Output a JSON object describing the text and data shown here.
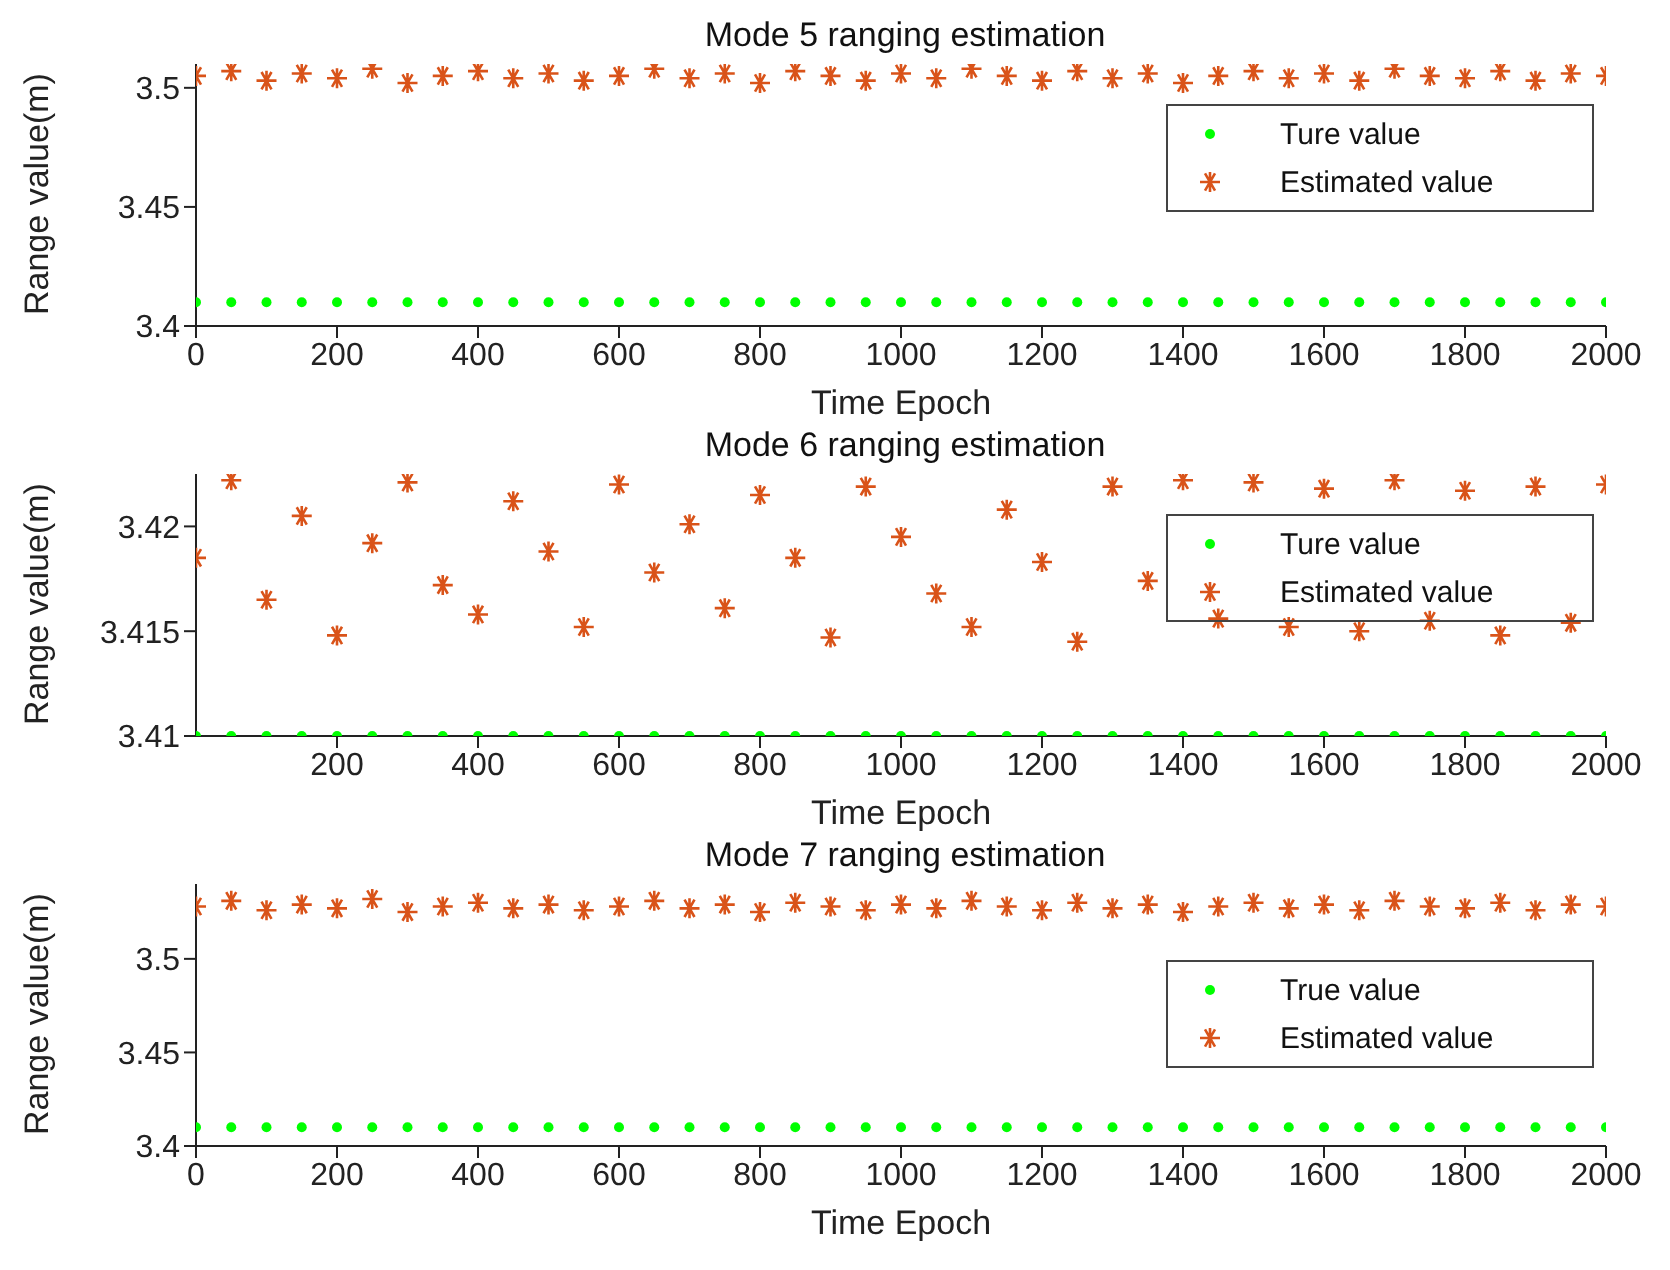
{
  "chart_data": [
    {
      "type": "scatter",
      "title": "Mode 5 ranging estimation",
      "xlabel": "Time Epoch",
      "ylabel": "Range value(m)",
      "legend": "top right",
      "grid": false,
      "x": [
        0,
        50,
        100,
        150,
        200,
        250,
        300,
        350,
        400,
        450,
        500,
        550,
        600,
        650,
        700,
        750,
        800,
        850,
        900,
        950,
        1000,
        1050,
        1100,
        1150,
        1200,
        1250,
        1300,
        1350,
        1400,
        1450,
        1500,
        1550,
        1600,
        1650,
        1700,
        1750,
        1800,
        1850,
        1900,
        1950,
        2000
      ],
      "xlim": [
        0,
        2000
      ],
      "xticks": [
        0,
        200,
        400,
        600,
        800,
        1000,
        1200,
        1400,
        1600,
        1800,
        2000
      ],
      "ylim": [
        3.4,
        3.51
      ],
      "yticks": [
        3.4,
        3.45,
        3.5
      ],
      "series": [
        {
          "name": "Ture value",
          "color": "#00ff00",
          "marker": "circle",
          "values": [
            3.41,
            3.41,
            3.41,
            3.41,
            3.41,
            3.41,
            3.41,
            3.41,
            3.41,
            3.41,
            3.41,
            3.41,
            3.41,
            3.41,
            3.41,
            3.41,
            3.41,
            3.41,
            3.41,
            3.41,
            3.41,
            3.41,
            3.41,
            3.41,
            3.41,
            3.41,
            3.41,
            3.41,
            3.41,
            3.41,
            3.41,
            3.41,
            3.41,
            3.41,
            3.41,
            3.41,
            3.41,
            3.41,
            3.41,
            3.41,
            3.41
          ]
        },
        {
          "name": "Estimated value",
          "color": "#d95319",
          "marker": "cross",
          "values": [
            3.505,
            3.507,
            3.503,
            3.506,
            3.504,
            3.508,
            3.502,
            3.505,
            3.507,
            3.504,
            3.506,
            3.503,
            3.505,
            3.508,
            3.504,
            3.506,
            3.502,
            3.507,
            3.505,
            3.503,
            3.506,
            3.504,
            3.508,
            3.505,
            3.503,
            3.507,
            3.504,
            3.506,
            3.502,
            3.505,
            3.507,
            3.504,
            3.506,
            3.503,
            3.508,
            3.505,
            3.504,
            3.507,
            3.503,
            3.506,
            3.505
          ]
        }
      ]
    },
    {
      "type": "scatter",
      "title": "Mode 6 ranging estimation",
      "xlabel": "Time Epoch",
      "ylabel": "Range value(m)",
      "legend": "top right",
      "grid": false,
      "x": [
        0,
        50,
        100,
        150,
        200,
        250,
        300,
        350,
        400,
        450,
        500,
        550,
        600,
        650,
        700,
        750,
        800,
        850,
        900,
        950,
        1000,
        1050,
        1100,
        1150,
        1200,
        1250,
        1300,
        1350,
        1400,
        1450,
        1500,
        1550,
        1600,
        1650,
        1700,
        1750,
        1800,
        1850,
        1900,
        1950,
        2000
      ],
      "xlim": [
        0,
        2000
      ],
      "xticks": [
        200,
        400,
        600,
        800,
        1000,
        1200,
        1400,
        1600,
        1800,
        2000
      ],
      "ylim": [
        3.41,
        3.4225
      ],
      "yticks": [
        3.41,
        3.415,
        3.42
      ],
      "series": [
        {
          "name": "Ture value",
          "color": "#00ff00",
          "marker": "circle",
          "values": [
            3.41,
            3.41,
            3.41,
            3.41,
            3.41,
            3.41,
            3.41,
            3.41,
            3.41,
            3.41,
            3.41,
            3.41,
            3.41,
            3.41,
            3.41,
            3.41,
            3.41,
            3.41,
            3.41,
            3.41,
            3.41,
            3.41,
            3.41,
            3.41,
            3.41,
            3.41,
            3.41,
            3.41,
            3.41,
            3.41,
            3.41,
            3.41,
            3.41,
            3.41,
            3.41,
            3.41,
            3.41,
            3.41,
            3.41,
            3.41,
            3.41
          ]
        },
        {
          "name": "Estimated value",
          "color": "#d95319",
          "marker": "cross",
          "values": [
            3.4185,
            3.4222,
            3.4165,
            3.4205,
            3.4148,
            3.4192,
            3.4221,
            3.4172,
            3.4158,
            3.4212,
            3.4188,
            3.4152,
            3.422,
            3.4178,
            3.4201,
            3.4161,
            3.4215,
            3.4185,
            3.4147,
            3.4219,
            3.4195,
            3.4168,
            3.4152,
            3.4208,
            3.4183,
            3.4145,
            3.4219,
            3.4174,
            3.4222,
            3.4156,
            3.4221,
            3.4152,
            3.4218,
            3.415,
            3.4222,
            3.4155,
            3.4217,
            3.4148,
            3.4219,
            3.4154,
            3.422
          ]
        }
      ]
    },
    {
      "type": "scatter",
      "title": "Mode 7 ranging estimation",
      "xlabel": "Time Epoch",
      "ylabel": "Range value(m)",
      "legend": "right",
      "grid": false,
      "x": [
        0,
        50,
        100,
        150,
        200,
        250,
        300,
        350,
        400,
        450,
        500,
        550,
        600,
        650,
        700,
        750,
        800,
        850,
        900,
        950,
        1000,
        1050,
        1100,
        1150,
        1200,
        1250,
        1300,
        1350,
        1400,
        1450,
        1500,
        1550,
        1600,
        1650,
        1700,
        1750,
        1800,
        1850,
        1900,
        1950,
        2000
      ],
      "xlim": [
        0,
        2000
      ],
      "xticks": [
        0,
        200,
        400,
        600,
        800,
        1000,
        1200,
        1400,
        1600,
        1800,
        2000
      ],
      "ylim": [
        3.4,
        3.54
      ],
      "yticks": [
        3.4,
        3.45,
        3.5
      ],
      "series": [
        {
          "name": "True value",
          "color": "#00ff00",
          "marker": "circle",
          "values": [
            3.41,
            3.41,
            3.41,
            3.41,
            3.41,
            3.41,
            3.41,
            3.41,
            3.41,
            3.41,
            3.41,
            3.41,
            3.41,
            3.41,
            3.41,
            3.41,
            3.41,
            3.41,
            3.41,
            3.41,
            3.41,
            3.41,
            3.41,
            3.41,
            3.41,
            3.41,
            3.41,
            3.41,
            3.41,
            3.41,
            3.41,
            3.41,
            3.41,
            3.41,
            3.41,
            3.41,
            3.41,
            3.41,
            3.41,
            3.41,
            3.41
          ]
        },
        {
          "name": "Estimated value",
          "color": "#d95319",
          "marker": "cross",
          "values": [
            3.528,
            3.531,
            3.526,
            3.529,
            3.527,
            3.532,
            3.525,
            3.528,
            3.53,
            3.527,
            3.529,
            3.526,
            3.528,
            3.531,
            3.527,
            3.529,
            3.525,
            3.53,
            3.528,
            3.526,
            3.529,
            3.527,
            3.531,
            3.528,
            3.526,
            3.53,
            3.527,
            3.529,
            3.525,
            3.528,
            3.53,
            3.527,
            3.529,
            3.526,
            3.531,
            3.528,
            3.527,
            3.53,
            3.526,
            3.529,
            3.528
          ]
        }
      ]
    }
  ]
}
